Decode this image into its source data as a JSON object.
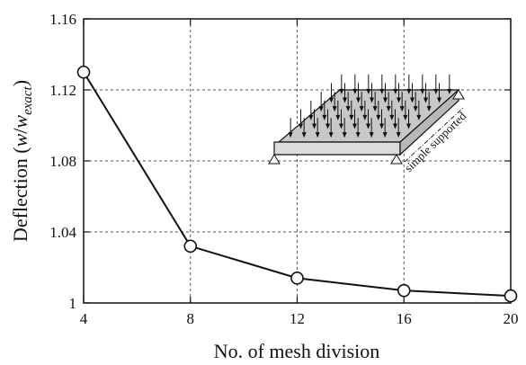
{
  "chart_data": {
    "type": "line",
    "title": "",
    "xlabel": "No. of mesh division",
    "ylabel_prefix": "Deflection (",
    "ylabel_w": "w",
    "ylabel_slash": "/",
    "ylabel_wexact": "w",
    "ylabel_sub": "exact",
    "ylabel_suffix": ")",
    "xlim": [
      4,
      20
    ],
    "ylim": [
      1.0,
      1.16
    ],
    "x_ticks": [
      4,
      8,
      12,
      16,
      20
    ],
    "x_tick_labels": [
      "4",
      "8",
      "12",
      "16",
      "20"
    ],
    "y_ticks": [
      1.0,
      1.04,
      1.08,
      1.12,
      1.16
    ],
    "y_tick_labels": [
      "1",
      "1.04",
      "1.08",
      "1.12",
      "1.16"
    ],
    "grid": true,
    "grid_style": "dashed",
    "marker": "open-circle",
    "series": [
      {
        "x": [
          4,
          8,
          12,
          16,
          20
        ],
        "y": [
          1.13,
          1.032,
          1.014,
          1.007,
          1.004
        ]
      }
    ],
    "inset": {
      "description_icon": "plate-with-distributed-load-icon",
      "label": "simple supported"
    }
  }
}
